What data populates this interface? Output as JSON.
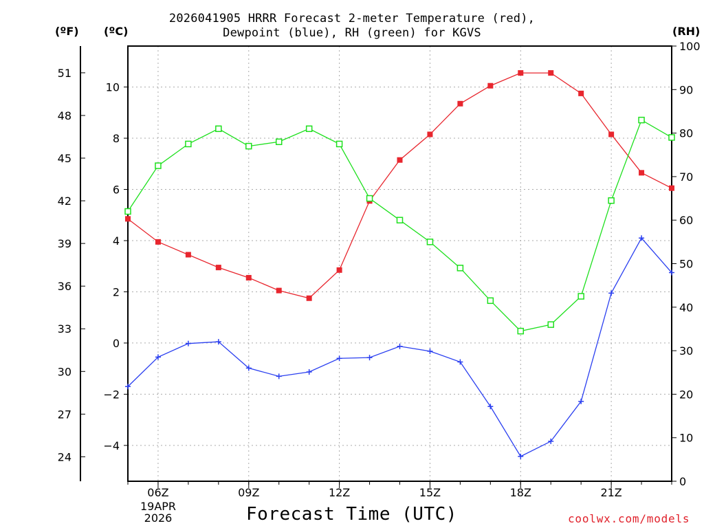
{
  "chart_data": {
    "type": "line",
    "title_line1": "2026041905 HRRR Forecast 2-meter Temperature (red),",
    "title_line2": "Dewpoint (blue), RH (green) for KGVS",
    "xlabel": "Forecast Time (UTC)",
    "credit": "coolwx.com/models",
    "date_line1": "19APR",
    "date_line2": "2026",
    "units": {
      "fahrenheit": "(ºF)",
      "celsius": "(ºC)",
      "rh": "(RH)"
    },
    "x_hours": [
      5,
      6,
      7,
      8,
      9,
      10,
      11,
      12,
      13,
      14,
      15,
      16,
      17,
      18,
      19,
      20,
      21,
      22,
      23
    ],
    "x_ticks": [
      {
        "hour": 6,
        "label": "06Z"
      },
      {
        "hour": 9,
        "label": "09Z"
      },
      {
        "hour": 12,
        "label": "12Z"
      },
      {
        "hour": 15,
        "label": "15Z"
      },
      {
        "hour": 18,
        "label": "18Z"
      },
      {
        "hour": 21,
        "label": "21Z"
      }
    ],
    "xlim": [
      5,
      23
    ],
    "celsius_axis": {
      "range": [
        -5.4,
        11.6
      ],
      "ticks": [
        -4,
        -2,
        0,
        2,
        4,
        6,
        8,
        10
      ],
      "labels": [
        "−4",
        "−2",
        "0",
        "2",
        "4",
        "6",
        "8",
        "10"
      ]
    },
    "fahrenheit_axis": {
      "ticks": [
        24,
        27,
        30,
        33,
        36,
        39,
        42,
        45,
        48,
        51
      ],
      "labels": [
        "24",
        "27",
        "30",
        "33",
        "36",
        "39",
        "42",
        "45",
        "48",
        "51"
      ]
    },
    "rh_axis": {
      "range": [
        0,
        100
      ],
      "ticks": [
        0,
        10,
        20,
        30,
        40,
        50,
        60,
        70,
        80,
        90,
        100
      ],
      "labels": [
        "0",
        "10",
        "20",
        "30",
        "40",
        "50",
        "60",
        "70",
        "80",
        "90",
        "100"
      ]
    },
    "series": [
      {
        "name": "Temperature",
        "unit": "C",
        "color": "#e8262e",
        "marker": "filled-square",
        "values": [
          4.85,
          3.95,
          3.45,
          2.95,
          2.55,
          2.05,
          1.75,
          2.85,
          5.55,
          7.15,
          8.15,
          9.35,
          10.05,
          10.55,
          10.55,
          9.75,
          8.15,
          6.65,
          6.05
        ]
      },
      {
        "name": "Dewpoint",
        "unit": "C",
        "color": "#2a3ff0",
        "marker": "plus",
        "values": [
          -1.7,
          -0.55,
          -0.02,
          0.05,
          -0.98,
          -1.3,
          -1.13,
          -0.6,
          -0.57,
          -0.13,
          -0.32,
          -0.74,
          -2.48,
          -4.43,
          -3.84,
          -2.28,
          1.95,
          4.1,
          2.75
        ]
      },
      {
        "name": "RH",
        "unit": "%",
        "color": "#1ee01e",
        "marker": "open-square",
        "values": [
          62,
          72.5,
          77.5,
          81,
          77,
          78,
          81,
          77.5,
          65,
          60,
          55,
          49,
          41.5,
          34.5,
          36,
          42.5,
          64.5,
          83,
          79
        ]
      }
    ]
  }
}
